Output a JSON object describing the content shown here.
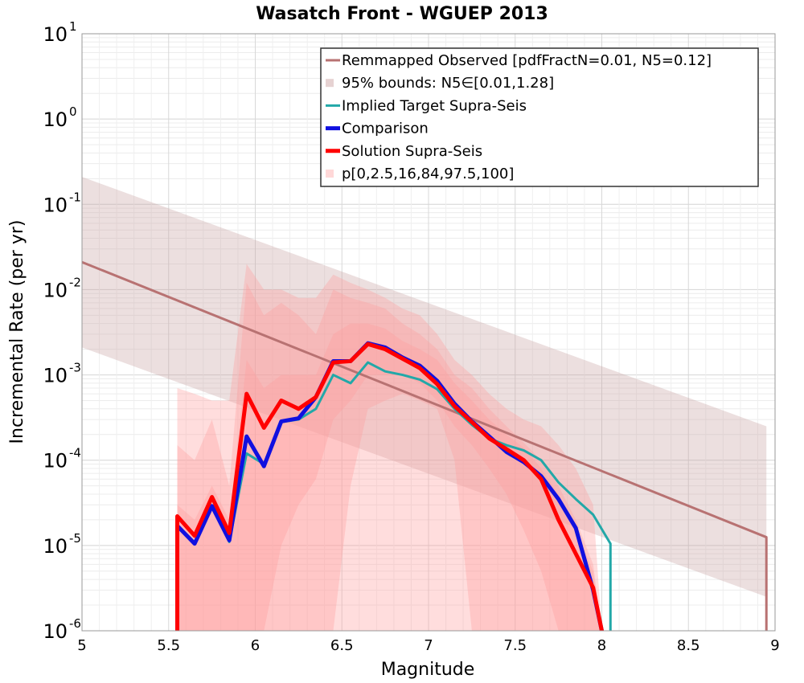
{
  "chart_data": {
    "type": "line",
    "title": "Wasatch Front - WGUEP 2013",
    "xlabel": "Magnitude",
    "ylabel": "Incremental Rate (per yr)",
    "xlim": [
      5,
      9
    ],
    "ylim": [
      1e-06,
      10
    ],
    "yscale": "log",
    "grid": true,
    "legend_position": "top-right",
    "xticks": [
      "5",
      "5.5",
      "6",
      "6.5",
      "7",
      "7.5",
      "8",
      "8.5",
      "9"
    ],
    "yticks": [
      {
        "base": "10",
        "exp": "-6"
      },
      {
        "base": "10",
        "exp": "-5"
      },
      {
        "base": "10",
        "exp": "-4"
      },
      {
        "base": "10",
        "exp": "-3"
      },
      {
        "base": "10",
        "exp": "-2"
      },
      {
        "base": "10",
        "exp": "-1"
      },
      {
        "base": "10",
        "exp": "0"
      },
      {
        "base": "10",
        "exp": "1"
      }
    ],
    "legend": [
      {
        "label": "Remmapped Observed [pdfFractN=0.01, N5=0.12]",
        "style": "line",
        "color": "#b87272"
      },
      {
        "label": "95% bounds: N5∈[0.01,1.28]",
        "style": "fill",
        "color": "#e6d2d2"
      },
      {
        "label": "Implied Target Supra-Seis",
        "style": "line",
        "color": "#22a8a8"
      },
      {
        "label": "Comparison",
        "style": "thick",
        "color": "#1010e0"
      },
      {
        "label": "Solution Supra-Seis",
        "style": "thick",
        "color": "#ff0000"
      },
      {
        "label": "p[0,2.5,16,84,97.5,100]",
        "style": "fill",
        "color": "#ffd8d8"
      }
    ],
    "bounds_95": {
      "x": [
        5.0,
        8.95
      ],
      "upper": [
        0.21,
        0.00025
      ],
      "lower": [
        0.0021,
        2.5e-06
      ]
    },
    "series": [
      {
        "name": "Remmapped Observed [pdfFractN=0.01, N5=0.12]",
        "x": [
          5.0,
          8.95,
          8.95
        ],
        "y": [
          0.021,
          1.25e-05,
          1e-06
        ]
      },
      {
        "name": "Implied Target Supra-Seis",
        "x": [
          5.55,
          5.55,
          5.65,
          5.75,
          5.85,
          5.95,
          6.05,
          6.15,
          6.25,
          6.35,
          6.45,
          6.55,
          6.65,
          6.75,
          6.85,
          6.95,
          7.05,
          7.15,
          7.25,
          7.35,
          7.45,
          7.55,
          7.65,
          7.75,
          7.85,
          7.95,
          8.05,
          8.05
        ],
        "y": [
          1e-06,
          1.7e-05,
          1.05e-05,
          2.9e-05,
          1.1e-05,
          0.00012,
          9e-05,
          0.00028,
          0.0003,
          0.0004,
          0.001,
          0.0008,
          0.0014,
          0.0011,
          0.001,
          0.00088,
          0.00068,
          0.0004,
          0.00026,
          0.00018,
          0.00015,
          0.00013,
          0.0001,
          5.5e-05,
          3.5e-05,
          2.3e-05,
          1.05e-05,
          1e-06
        ]
      },
      {
        "name": "Comparison",
        "x": [
          5.55,
          5.55,
          5.65,
          5.75,
          5.85,
          5.95,
          6.05,
          6.15,
          6.25,
          6.35,
          6.45,
          6.55,
          6.65,
          6.75,
          6.85,
          6.95,
          7.05,
          7.15,
          7.25,
          7.35,
          7.45,
          7.55,
          7.65,
          7.75,
          7.85,
          7.95,
          8.0
        ],
        "y": [
          1e-06,
          1.7e-05,
          1.05e-05,
          2.9e-05,
          1.15e-05,
          0.00019,
          8.5e-05,
          0.000285,
          0.00031,
          0.00055,
          0.00145,
          0.00145,
          0.00235,
          0.0021,
          0.0016,
          0.00128,
          0.00085,
          0.00046,
          0.000285,
          0.00019,
          0.000125,
          9.5e-05,
          6.5e-05,
          3.5e-05,
          1.6e-05,
          3e-06,
          1e-06
        ]
      },
      {
        "name": "Solution Supra-Seis",
        "x": [
          5.55,
          5.55,
          5.65,
          5.75,
          5.85,
          5.95,
          6.05,
          6.15,
          6.25,
          6.35,
          6.45,
          6.55,
          6.65,
          6.75,
          6.85,
          6.95,
          7.05,
          7.15,
          7.25,
          7.35,
          7.45,
          7.55,
          7.65,
          7.75,
          7.85,
          7.95,
          8.0
        ],
        "y": [
          1e-06,
          2.2e-05,
          1.3e-05,
          3.7e-05,
          1.4e-05,
          0.0006,
          0.00024,
          0.0005,
          0.0004,
          0.00055,
          0.0014,
          0.00145,
          0.0023,
          0.002,
          0.00155,
          0.0012,
          0.00078,
          0.00043,
          0.00028,
          0.00018,
          0.000135,
          0.0001,
          6e-05,
          2e-05,
          8e-06,
          3.2e-06,
          1e-06
        ]
      }
    ],
    "percentile_bands": {
      "x": [
        5.55,
        5.65,
        5.75,
        5.85,
        5.95,
        6.05,
        6.15,
        6.25,
        6.35,
        6.45,
        6.55,
        6.65,
        6.75,
        6.85,
        6.95,
        7.05,
        7.15,
        7.25,
        7.35,
        7.45,
        7.55,
        7.65,
        7.75,
        7.85,
        7.95,
        8.0
      ],
      "p0_100": {
        "lower": [
          1e-06,
          1e-06,
          1e-06,
          1e-06,
          1e-06,
          1e-06,
          1e-06,
          1e-06,
          1e-06,
          1e-06,
          1e-06,
          1e-06,
          1e-06,
          1e-06,
          1e-06,
          1e-06,
          1e-06,
          1e-06,
          1e-06,
          1e-06,
          1e-06,
          1e-06,
          1e-06,
          1e-06,
          1e-06,
          1e-06
        ],
        "upper": [
          0.0007,
          0.0006,
          0.0005,
          0.0005,
          0.02,
          0.01,
          0.01,
          0.008,
          0.008,
          0.015,
          0.012,
          0.01,
          0.008,
          0.006,
          0.005,
          0.003,
          0.0015,
          0.001,
          0.0006,
          0.0004,
          0.0003,
          0.00025,
          0.00015,
          8e-05,
          3e-05,
          1e-06
        ]
      },
      "p2_5_97_5": {
        "lower": [
          1e-06,
          1e-06,
          1e-06,
          1e-06,
          1e-06,
          1e-06,
          1e-06,
          1e-06,
          1e-06,
          1e-06,
          5e-05,
          0.0004,
          0.0005,
          0.0006,
          0.0005,
          0.0004,
          0.0001,
          1e-06,
          1e-06,
          1e-06,
          1e-06,
          1e-06,
          1e-06,
          1e-06,
          1e-06,
          1e-06
        ],
        "upper": [
          0.00015,
          0.0001,
          0.0003,
          5e-05,
          0.012,
          0.005,
          0.007,
          0.005,
          0.003,
          0.01,
          0.008,
          0.007,
          0.006,
          0.004,
          0.003,
          0.002,
          0.001,
          0.0007,
          0.0004,
          0.00025,
          0.00016,
          0.0001,
          5e-05,
          2e-05,
          6e-06,
          1e-06
        ]
      },
      "p16_84": {
        "lower": [
          1e-06,
          1e-06,
          1e-06,
          1e-06,
          1e-06,
          1e-06,
          1e-05,
          3e-05,
          6e-05,
          0.0003,
          0.0005,
          0.001,
          0.001,
          0.001,
          0.0008,
          0.0005,
          0.00025,
          0.00015,
          8e-05,
          4e-05,
          1.5e-05,
          5e-06,
          1e-06,
          1e-06,
          1e-06,
          1e-06
        ],
        "upper": [
          3e-05,
          2e-05,
          5e-05,
          2e-05,
          0.0015,
          0.0007,
          0.001,
          0.001,
          0.001,
          0.003,
          0.004,
          0.004,
          0.0035,
          0.0025,
          0.002,
          0.0015,
          0.0008,
          0.0005,
          0.0003,
          0.0002,
          0.00014,
          8e-05,
          4e-05,
          1.5e-05,
          5e-06,
          1e-06
        ]
      }
    }
  }
}
